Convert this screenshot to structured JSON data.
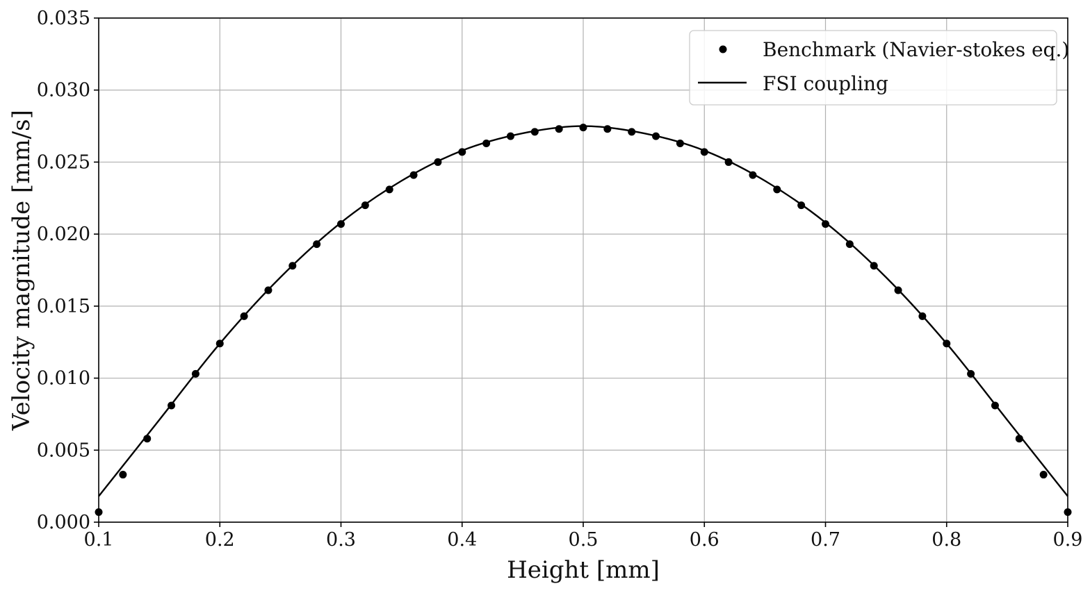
{
  "chart_data": {
    "type": "scatter",
    "xlabel": "Height [mm]",
    "ylabel": "Velocity magnitude [mm/s]",
    "xlim": [
      0.1,
      0.9
    ],
    "ylim": [
      0.0,
      0.035
    ],
    "x_ticks": [
      "0.1",
      "0.2",
      "0.3",
      "0.4",
      "0.5",
      "0.6",
      "0.7",
      "0.8",
      "0.9"
    ],
    "y_ticks": [
      "0.000",
      "0.005",
      "0.010",
      "0.015",
      "0.020",
      "0.025",
      "0.030",
      "0.035"
    ],
    "grid": true,
    "legend_position": "top-right",
    "series": [
      {
        "name": "Benchmark (Navier-stokes eq.)",
        "style": "markers",
        "color": "#000000",
        "x": [
          0.1,
          0.12,
          0.14,
          0.16,
          0.18,
          0.2,
          0.22,
          0.24,
          0.26,
          0.28,
          0.3,
          0.32,
          0.34,
          0.36,
          0.38,
          0.4,
          0.42,
          0.44,
          0.46,
          0.48,
          0.5,
          0.52,
          0.54,
          0.56,
          0.58,
          0.6,
          0.62,
          0.64,
          0.66,
          0.68,
          0.7,
          0.72,
          0.74,
          0.76,
          0.78,
          0.8,
          0.82,
          0.84,
          0.86,
          0.88,
          0.9
        ],
        "y": [
          0.0007,
          0.0033,
          0.0058,
          0.0081,
          0.0103,
          0.0124,
          0.0143,
          0.0161,
          0.0178,
          0.0193,
          0.0207,
          0.022,
          0.0231,
          0.0241,
          0.025,
          0.0257,
          0.0263,
          0.0268,
          0.0271,
          0.0273,
          0.0274,
          0.0273,
          0.0271,
          0.0268,
          0.0263,
          0.0257,
          0.025,
          0.0241,
          0.0231,
          0.022,
          0.0207,
          0.0193,
          0.0178,
          0.0161,
          0.0143,
          0.0124,
          0.0103,
          0.0081,
          0.0058,
          0.0033,
          0.0007
        ]
      },
      {
        "name": "FSI coupling",
        "style": "line",
        "color": "#000000",
        "x": [
          0.1,
          0.15,
          0.2,
          0.25,
          0.3,
          0.35,
          0.4,
          0.45,
          0.5,
          0.55,
          0.6,
          0.65,
          0.7,
          0.75,
          0.8,
          0.85,
          0.9
        ],
        "y": [
          0.0018,
          0.0071,
          0.0124,
          0.017,
          0.0208,
          0.0237,
          0.0258,
          0.027,
          0.0275,
          0.027,
          0.0258,
          0.0237,
          0.0208,
          0.017,
          0.0124,
          0.0071,
          0.0018
        ]
      }
    ]
  }
}
